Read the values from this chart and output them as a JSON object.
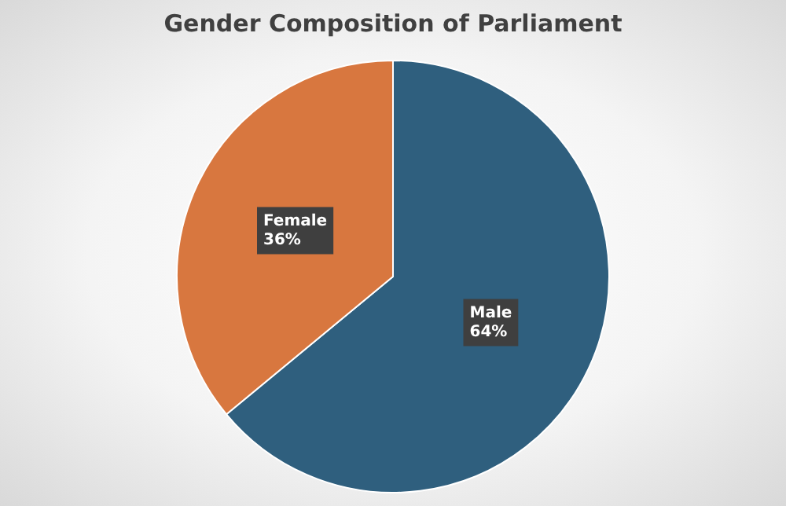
{
  "chart_data": {
    "type": "pie",
    "title": "Gender Composition of Parliament",
    "categories": [
      "Male",
      "Female"
    ],
    "values": [
      64,
      36
    ],
    "colors": [
      "#2f5f7e",
      "#d8773f"
    ],
    "value_labels": [
      "64%",
      "36%"
    ],
    "legend": false
  }
}
